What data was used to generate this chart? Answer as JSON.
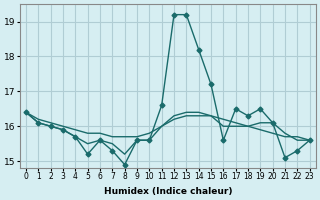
{
  "xlabel": "Humidex (Indice chaleur)",
  "ylabel": "",
  "background_color": "#d6eef2",
  "grid_color": "#b0cdd4",
  "line_color": "#1a6b6b",
  "xlim": [
    -0.5,
    23.5
  ],
  "ylim": [
    14.8,
    19.5
  ],
  "yticks": [
    15,
    16,
    17,
    18,
    19
  ],
  "xtick_labels": [
    "0",
    "1",
    "2",
    "3",
    "4",
    "5",
    "6",
    "7",
    "8",
    "9",
    "10",
    "11",
    "12",
    "13",
    "14",
    "15",
    "16",
    "17",
    "18",
    "19",
    "20",
    "21",
    "22",
    "23"
  ],
  "series1": [
    16.4,
    16.1,
    16.0,
    15.9,
    15.7,
    15.2,
    15.6,
    15.3,
    14.9,
    15.6,
    15.6,
    16.6,
    19.2,
    19.2,
    18.2,
    17.2,
    15.6,
    16.5,
    16.3,
    16.5,
    16.1,
    15.1,
    15.3,
    15.6
  ],
  "series2": [
    16.4,
    16.2,
    16.1,
    16.0,
    15.9,
    15.8,
    15.8,
    15.7,
    15.7,
    15.7,
    15.8,
    16.0,
    16.2,
    16.3,
    16.3,
    16.3,
    16.2,
    16.1,
    16.0,
    15.9,
    15.8,
    15.7,
    15.7,
    15.6
  ],
  "series3": [
    16.4,
    16.1,
    16.0,
    15.9,
    15.7,
    15.5,
    15.6,
    15.5,
    15.2,
    15.6,
    15.6,
    16.0,
    16.3,
    16.4,
    16.4,
    16.3,
    16.0,
    16.0,
    16.0,
    16.1,
    16.1,
    15.8,
    15.6,
    15.6
  ]
}
